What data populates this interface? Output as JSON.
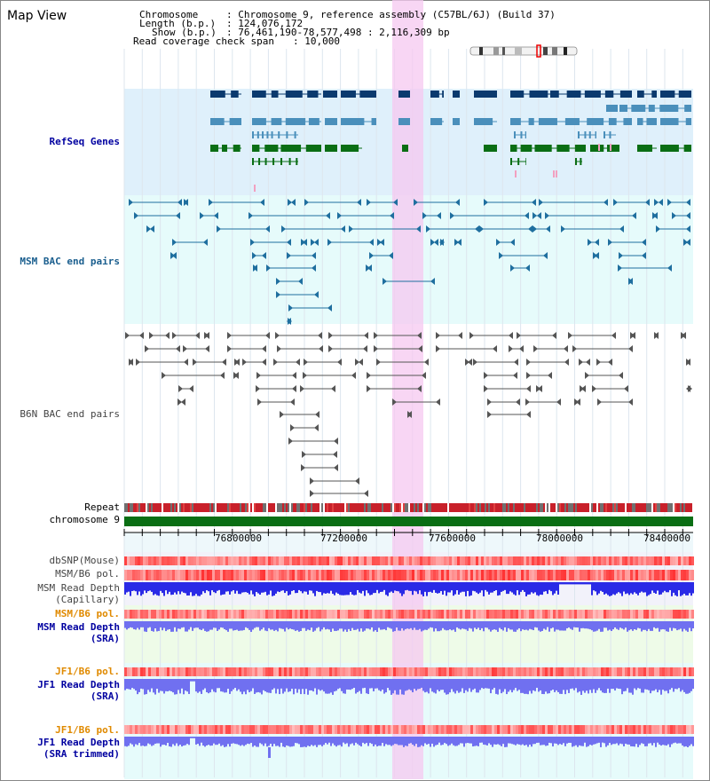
{
  "title": "Map View",
  "header": {
    "chromosome_key": "Chromosome",
    "chromosome_val": ": Chromosome 9, reference assembly (C57BL/6J) (Build 37)",
    "length_key": "Length (b.p.)",
    "length_val": ": 124,076,172",
    "show_key": "Show (b.p.)",
    "show_val": ": 76,461,190-78,577,498 : 2,116,309 bp",
    "coverage_key": "Read coverage check span",
    "coverage_val": ": 10,000"
  },
  "tracks": {
    "refseq": "RefSeq Genes",
    "msm_bac": "MSM BAC end pairs",
    "b6n_bac": "B6N BAC end pairs",
    "repeat": "Repeat",
    "chromosome": "chromosome 9",
    "dbsnp": "dbSNP(Mouse)",
    "msm_b6_pol_1": "MSM/B6 pol.",
    "msm_read_depth_cap_1": "MSM Read Depth",
    "msm_read_depth_cap_2": "(Capillary)",
    "msm_b6_pol_2": "MSM/B6 pol.",
    "msm_read_depth_sra_1": "MSM Read Depth",
    "msm_read_depth_sra_2": "(SRA)",
    "jf1_b6_pol_1": "JF1/B6 pol.",
    "jf1_read_depth_sra_1": "JF1 Read Depth",
    "jf1_read_depth_sra_2": "(SRA)",
    "jf1_b6_pol_2": "JF1/B6 pol.",
    "jf1_read_depth_trim_1": "JF1 Read Depth",
    "jf1_read_depth_trim_2": "(SRA trimmed)"
  },
  "axis": {
    "ticks": [
      "76800000",
      "77200000",
      "77600000",
      "78000000",
      "78400000"
    ]
  },
  "colors": {
    "refseq_bg": "#dff0fb",
    "msm_bg": "#e6fbfb",
    "highlight": "#f5c8f0",
    "gene_dark": "#0b3a6e",
    "gene_mid": "#4a8fbb",
    "gene_green": "#0a6e14",
    "repeat_red": "#c8202a",
    "chrom_green": "#0a6e14",
    "depth_blue": "#2a2ae6",
    "depth_light": "#7070f0"
  }
}
